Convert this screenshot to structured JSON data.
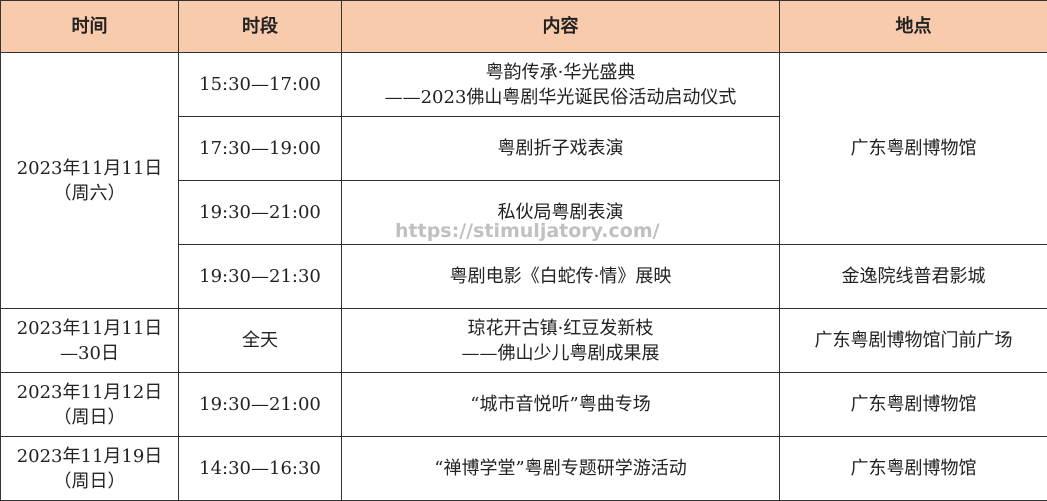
{
  "header": {
    "col1": "时间",
    "col2": "时段",
    "col3": "内容",
    "col4": "地点"
  },
  "colors": {
    "header_bg": "#f8cbad",
    "border": "#333333"
  },
  "rows": [
    {
      "date": [
        "2023年11月11日",
        "（周六）"
      ],
      "time": "15:30—17:00",
      "content": [
        "粤韵传承·华光盛典",
        "——2023佛山粤剧华光诞民俗活动启动仪式"
      ],
      "place": "广东粤剧博物馆"
    },
    {
      "time": "17:30—19:00",
      "content": [
        "粤剧折子戏表演"
      ]
    },
    {
      "time": "19:30—21:00",
      "content": [
        "私伙局粤剧表演"
      ]
    },
    {
      "time": "19:30—21:30",
      "content": [
        "粤剧电影《白蛇传·情》展映"
      ],
      "place": "金逸院线普君影城"
    },
    {
      "date": [
        "2023年11月11日",
        "—30日"
      ],
      "time": "全天",
      "content": [
        "琼花开古镇·红豆发新枝",
        "——佛山少儿粤剧成果展"
      ],
      "place": "广东粤剧博物馆门前广场"
    },
    {
      "date": [
        "2023年11月12日",
        "（周日）"
      ],
      "time": "19:30—21:00",
      "content": [
        "“城市音悦听”粤曲专场"
      ],
      "place": "广东粤剧博物馆"
    },
    {
      "date": [
        "2023年11月19日",
        "（周日）"
      ],
      "time": "14:30—16:30",
      "content": [
        "“禅博学堂”粤剧专题研学游活动"
      ],
      "place": "广东粤剧博物馆"
    }
  ],
  "watermark": "https://stimuljatory.com/"
}
